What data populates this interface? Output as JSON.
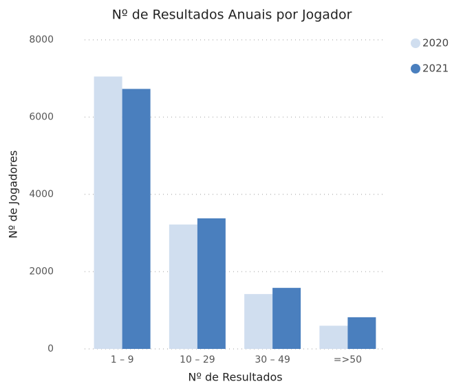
{
  "chart_data": {
    "type": "bar",
    "title": "Nº de Resultados Anuais por Jogador",
    "x_label": "Nº de Resultados",
    "y_label": "Nº de Jogadores",
    "categories": [
      "1 – 9",
      "10 – 29",
      "30 – 49",
      "=>50"
    ],
    "series": [
      {
        "name": "2020",
        "color": "#d0deef",
        "values": [
          7050,
          3220,
          1420,
          600
        ]
      },
      {
        "name": "2021",
        "color": "#4a7fbe",
        "values": [
          6730,
          3380,
          1580,
          820
        ]
      }
    ],
    "ylim": [
      0,
      8000
    ],
    "yticks": [
      0,
      2000,
      4000,
      6000,
      8000
    ],
    "grid": true
  }
}
